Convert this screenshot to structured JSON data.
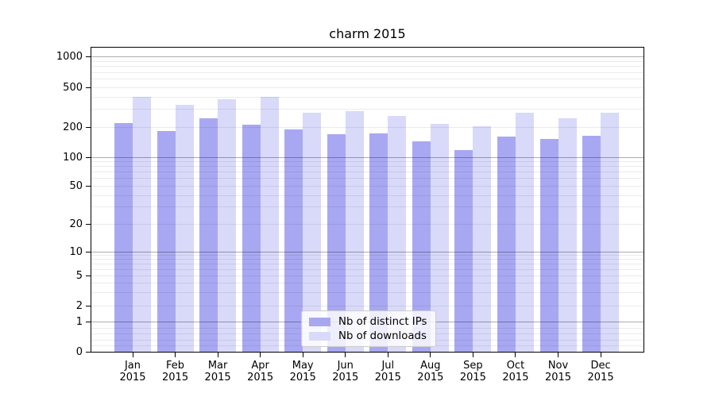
{
  "title": "charm 2015",
  "colors": {
    "distinct_ips_bar": "#a8a8f2",
    "downloads_bar": "#d9d9fa",
    "grid_minor": "rgba(0,0,0,0.08)",
    "grid_major": "rgba(0,0,0,0.32)",
    "axis": "#000000",
    "legend_border": "#cccccc",
    "legend_background": "rgba(255,255,255,0.8)"
  },
  "legend": {
    "items": [
      {
        "label": "Nb of distinct IPs",
        "color": "#a8a8f2"
      },
      {
        "label": "Nb of downloads",
        "color": "#d9d9fa"
      }
    ]
  },
  "chart_data": {
    "type": "bar",
    "title": "charm 2015",
    "categories": [
      "Jan 2015",
      "Feb 2015",
      "Mar 2015",
      "Apr 2015",
      "May 2015",
      "Jun 2015",
      "Jul 2015",
      "Aug 2015",
      "Sep 2015",
      "Oct 2015",
      "Nov 2015",
      "Dec 2015"
    ],
    "series": [
      {
        "name": "Nb of distinct IPs",
        "color": "#a8a8f2",
        "values": [
          220,
          183,
          243,
          210,
          190,
          171,
          173,
          145,
          117,
          161,
          152,
          165
        ]
      },
      {
        "name": "Nb of downloads",
        "color": "#d9d9fa",
        "values": [
          405,
          337,
          380,
          398,
          277,
          286,
          258,
          215,
          205,
          280,
          246,
          280
        ]
      }
    ],
    "xlabel": "",
    "ylabel": "",
    "yscale": "symlog",
    "y_ticks": [
      1000,
      500,
      200,
      100,
      50,
      20,
      10,
      5,
      2,
      1,
      0
    ],
    "y_tick_labels": [
      "1000",
      "500",
      "200",
      "100",
      "50",
      "20",
      "10",
      "5",
      "2",
      "1",
      "0"
    ],
    "ylim": [
      0,
      1200
    ],
    "grid": true,
    "grid_over_bars": true,
    "legend_position": "lower center"
  }
}
